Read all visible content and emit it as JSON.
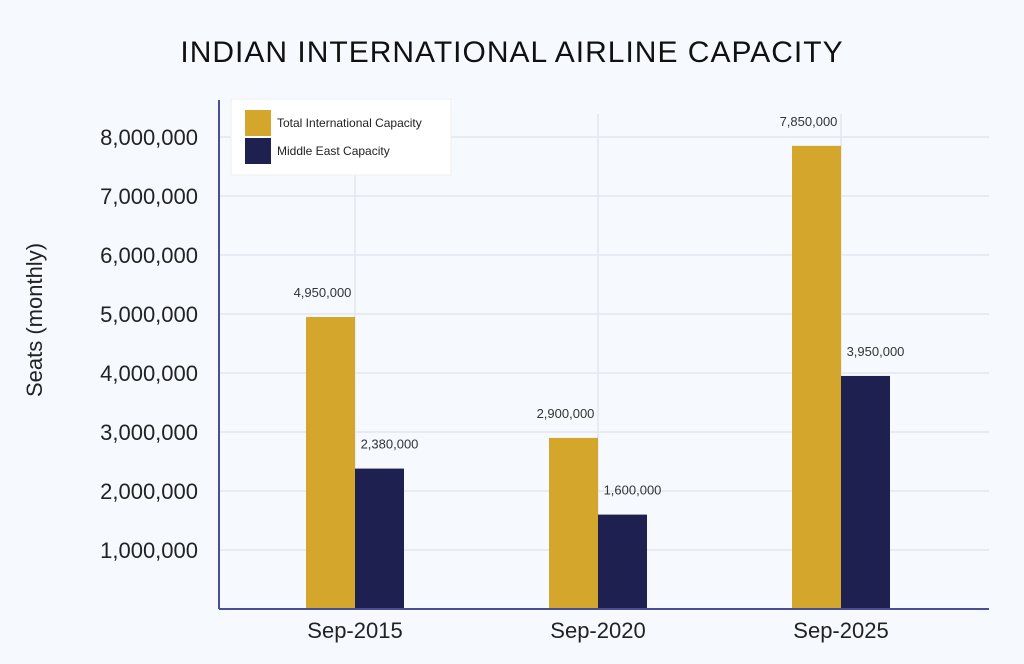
{
  "chart_data": {
    "type": "bar",
    "title": "INDIAN INTERNATIONAL AIRLINE CAPACITY",
    "xlabel": "",
    "ylabel": "Seats (monthly)",
    "categories": [
      "Sep-2015",
      "Sep-2020",
      "Sep-2025"
    ],
    "series": [
      {
        "name": "Total International Capacity",
        "color": "#D4A72C",
        "values": [
          4950000,
          2900000,
          7850000
        ],
        "labels": [
          "4,950,000",
          "2,900,000",
          "7,850,000"
        ]
      },
      {
        "name": "Middle East Capacity",
        "color": "#1E2150",
        "values": [
          2380000,
          1600000,
          3950000
        ],
        "labels": [
          "2,380,000",
          "1,600,000",
          "3,950,000"
        ]
      }
    ],
    "ylim": [
      0,
      8000000
    ],
    "yticks": [
      1000000,
      2000000,
      3000000,
      4000000,
      5000000,
      6000000,
      7000000,
      8000000
    ],
    "ytick_labels": [
      "1,000,000",
      "2,000,000",
      "3,000,000",
      "4,000,000",
      "5,000,000",
      "6,000,000",
      "7,000,000",
      "8,000,000"
    ],
    "grid": true,
    "legend_position": "top-left",
    "axis_color": "#4A4E96",
    "grid_color": "#E3E6F0"
  }
}
